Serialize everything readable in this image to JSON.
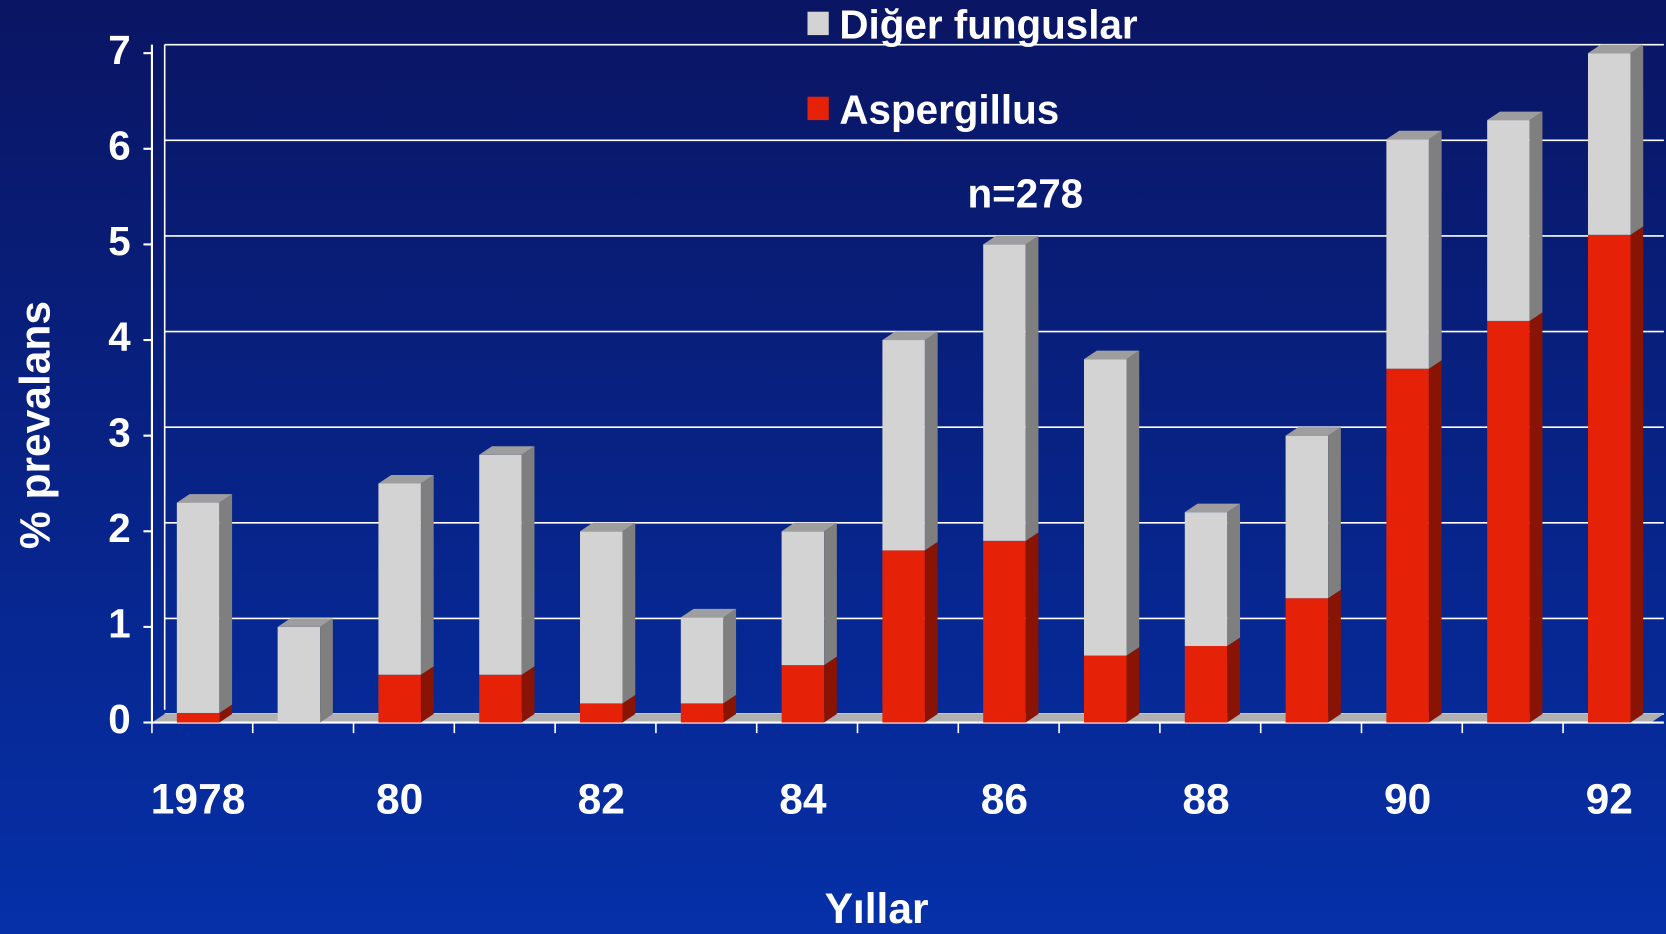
{
  "chart_data": {
    "type": "stacked_bar",
    "annotation": "n=278",
    "x_label": "Yıllar",
    "y_label": "% prevalans",
    "categories": [
      "1978",
      null,
      "80",
      null,
      "82",
      null,
      "84",
      null,
      "86",
      null,
      "88",
      null,
      "90",
      null,
      "92"
    ],
    "series": [
      {
        "name": "Aspergillus",
        "color": "#e52207",
        "values": [
          0.1,
          0,
          0.5,
          0.5,
          0.2,
          0.2,
          0.6,
          1.8,
          1.9,
          0.7,
          0.8,
          1.3,
          3.7,
          4.2,
          5.1
        ]
      },
      {
        "name": "Diğer funguslar",
        "color": "#d3d3d3",
        "values": [
          2.2,
          1.0,
          2.0,
          2.3,
          1.8,
          0.9,
          1.4,
          2.2,
          3.1,
          3.1,
          1.4,
          1.7,
          2.4,
          2.1,
          1.9
        ]
      }
    ],
    "ylim": [
      0,
      7
    ],
    "yticks": [
      0,
      1,
      2,
      3,
      4,
      5,
      6,
      7
    ],
    "grid": true,
    "legend": "top"
  }
}
